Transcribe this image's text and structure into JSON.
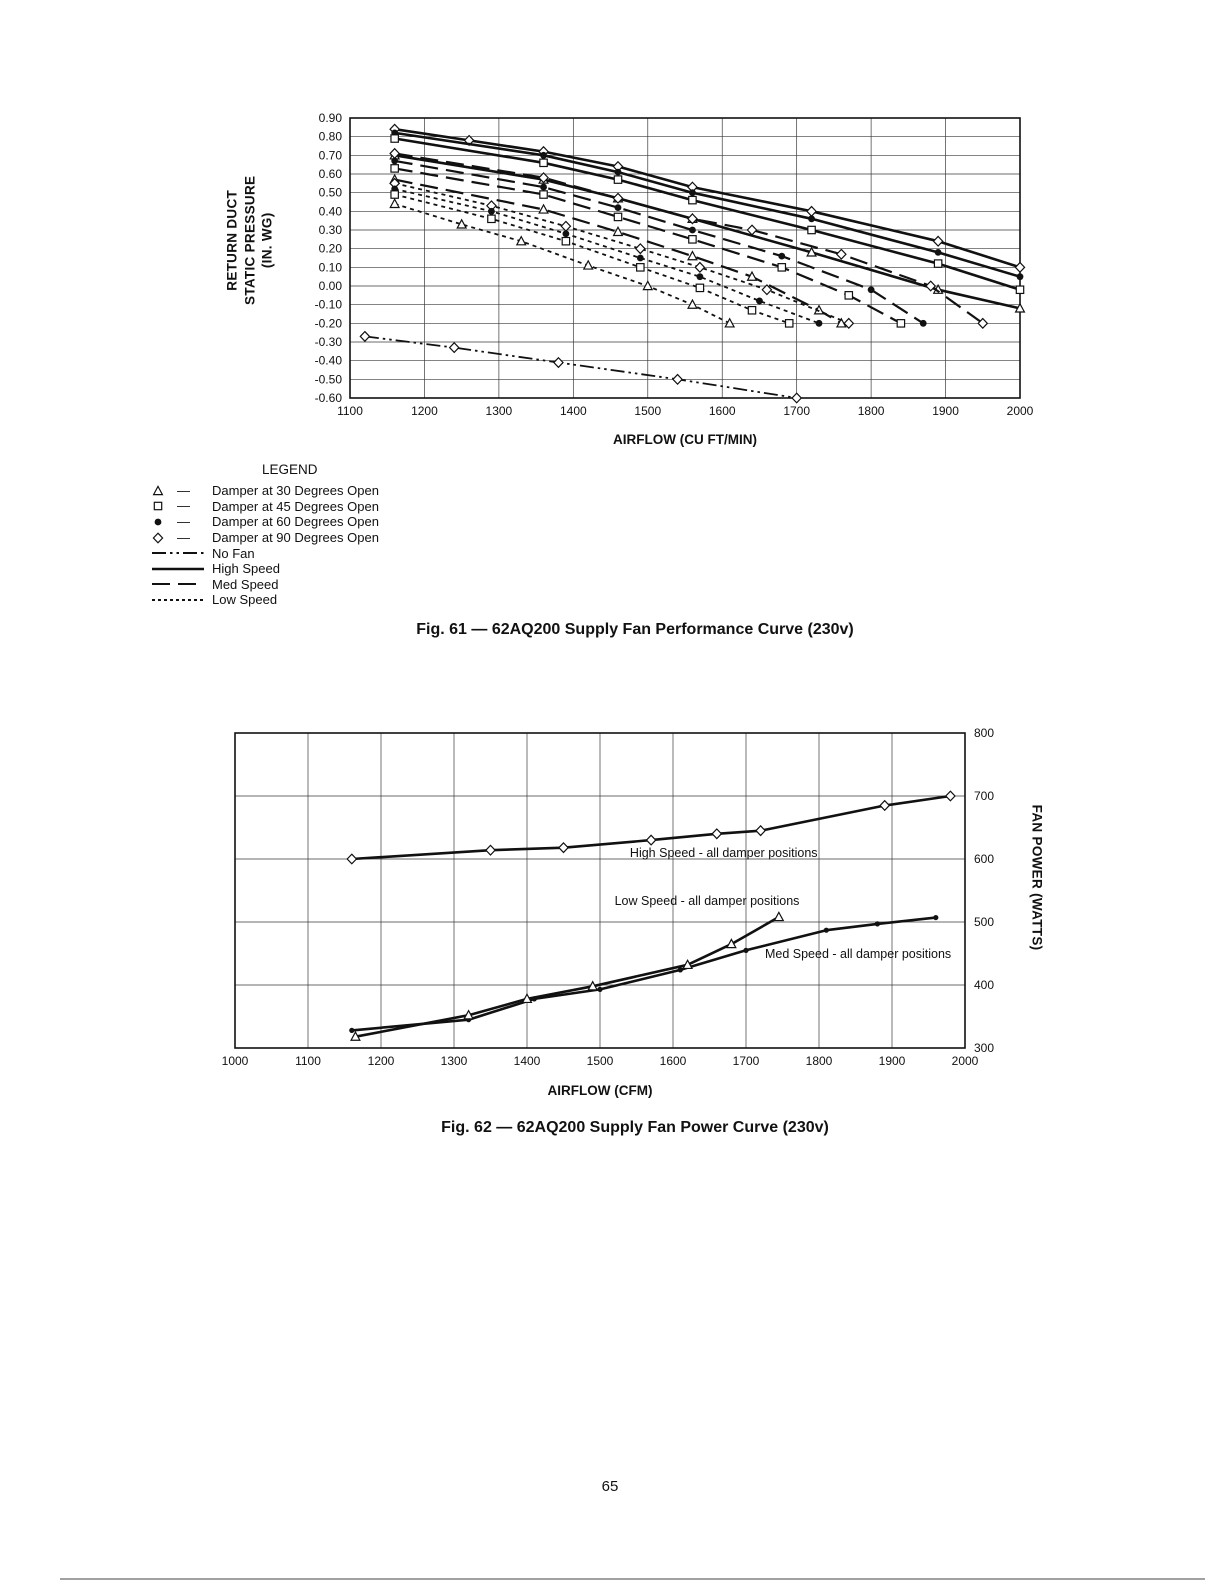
{
  "page": {
    "number": "65"
  },
  "fig61": {
    "caption": "Fig. 61 — 62AQ200 Supply Fan Performance Curve (230v)",
    "xlabel": "AIRFLOW (CU FT/MIN)",
    "ylabel_lines": [
      "RETURN DUCT",
      "STATIC PRESSURE",
      "(IN. WG)"
    ],
    "legend": {
      "title": "LEGEND",
      "items": [
        {
          "marker": "triangle",
          "label": "Damper at 30 Degrees Open"
        },
        {
          "marker": "square",
          "label": "Damper at 45 Degrees Open"
        },
        {
          "marker": "circle-filled",
          "label": "Damper at 60 Degrees Open"
        },
        {
          "marker": "diamond",
          "label": "Damper at 90 Degrees Open"
        },
        {
          "line": "dashdot",
          "label": "No Fan"
        },
        {
          "line": "solid",
          "label": "High Speed"
        },
        {
          "line": "dashed",
          "label": "Med Speed"
        },
        {
          "line": "dotted",
          "label": "Low Speed"
        }
      ]
    }
  },
  "fig62": {
    "caption": "Fig. 62 — 62AQ200 Supply Fan Power Curve (230v)",
    "xlabel": "AIRFLOW (CFM)",
    "ylabel": "FAN POWER (WATTS)"
  },
  "chart_data": [
    {
      "type": "line",
      "title": "Fig. 61 — 62AQ200 Supply Fan Performance Curve (230v)",
      "xlabel": "AIRFLOW (CU FT/MIN)",
      "ylabel": "RETURN DUCT STATIC PRESSURE (IN. WG)",
      "xlim": [
        1100,
        2000
      ],
      "ylim": [
        -0.6,
        0.9
      ],
      "x_tick_step": 100,
      "y_tick_step": 0.1,
      "y_tick_decimals": 2,
      "grid": true,
      "legend_position": "below-left",
      "series": [
        {
          "name": "High Speed - Damper at 90 Degrees Open",
          "line": "solid",
          "marker": "diamond",
          "points": [
            [
              1160,
              0.84
            ],
            [
              1260,
              0.78
            ],
            [
              1360,
              0.72
            ],
            [
              1460,
              0.64
            ],
            [
              1560,
              0.53
            ],
            [
              1720,
              0.4
            ],
            [
              1890,
              0.24
            ],
            [
              2000,
              0.1
            ]
          ]
        },
        {
          "name": "High Speed - Damper at 60 Degrees Open",
          "line": "solid",
          "marker": "circle-filled",
          "points": [
            [
              1160,
              0.82
            ],
            [
              1360,
              0.7
            ],
            [
              1460,
              0.61
            ],
            [
              1560,
              0.5
            ],
            [
              1720,
              0.36
            ],
            [
              1890,
              0.18
            ],
            [
              2000,
              0.05
            ]
          ]
        },
        {
          "name": "High Speed - Damper at 45 Degrees Open",
          "line": "solid",
          "marker": "square",
          "points": [
            [
              1160,
              0.79
            ],
            [
              1360,
              0.66
            ],
            [
              1460,
              0.57
            ],
            [
              1560,
              0.46
            ],
            [
              1720,
              0.3
            ],
            [
              1890,
              0.12
            ],
            [
              2000,
              -0.02
            ]
          ]
        },
        {
          "name": "High Speed - Damper at 30 Degrees Open",
          "line": "solid",
          "marker": "triangle",
          "points": [
            [
              1160,
              0.7
            ],
            [
              1360,
              0.57
            ],
            [
              1460,
              0.47
            ],
            [
              1560,
              0.36
            ],
            [
              1720,
              0.18
            ],
            [
              1890,
              -0.02
            ],
            [
              2000,
              -0.12
            ]
          ]
        },
        {
          "name": "Med Speed - Damper at 90 Degrees Open",
          "line": "dashed",
          "marker": "diamond",
          "points": [
            [
              1160,
              0.71
            ],
            [
              1360,
              0.58
            ],
            [
              1460,
              0.47
            ],
            [
              1560,
              0.36
            ],
            [
              1640,
              0.3
            ],
            [
              1760,
              0.17
            ],
            [
              1880,
              0.0
            ],
            [
              1950,
              -0.2
            ]
          ]
        },
        {
          "name": "Med Speed - Damper at 60 Degrees Open",
          "line": "dashed",
          "marker": "circle-filled",
          "points": [
            [
              1160,
              0.67
            ],
            [
              1360,
              0.53
            ],
            [
              1460,
              0.42
            ],
            [
              1560,
              0.3
            ],
            [
              1680,
              0.16
            ],
            [
              1800,
              -0.02
            ],
            [
              1870,
              -0.2
            ]
          ]
        },
        {
          "name": "Med Speed - Damper at 45 Degrees Open",
          "line": "dashed",
          "marker": "square",
          "points": [
            [
              1160,
              0.63
            ],
            [
              1360,
              0.49
            ],
            [
              1460,
              0.37
            ],
            [
              1560,
              0.25
            ],
            [
              1680,
              0.1
            ],
            [
              1770,
              -0.05
            ],
            [
              1840,
              -0.2
            ]
          ]
        },
        {
          "name": "Med Speed - Damper at 30 Degrees Open",
          "line": "dashed",
          "marker": "triangle",
          "points": [
            [
              1160,
              0.57
            ],
            [
              1360,
              0.41
            ],
            [
              1460,
              0.29
            ],
            [
              1560,
              0.16
            ],
            [
              1640,
              0.05
            ],
            [
              1730,
              -0.13
            ],
            [
              1760,
              -0.2
            ]
          ]
        },
        {
          "name": "Low Speed - Damper at 90 Degrees Open",
          "line": "dotted",
          "marker": "diamond",
          "points": [
            [
              1160,
              0.55
            ],
            [
              1290,
              0.43
            ],
            [
              1390,
              0.32
            ],
            [
              1490,
              0.2
            ],
            [
              1570,
              0.1
            ],
            [
              1660,
              -0.02
            ],
            [
              1770,
              -0.2
            ]
          ]
        },
        {
          "name": "Low Speed - Damper at 60 Degrees Open",
          "line": "dotted",
          "marker": "circle-filled",
          "points": [
            [
              1160,
              0.52
            ],
            [
              1290,
              0.4
            ],
            [
              1390,
              0.28
            ],
            [
              1490,
              0.15
            ],
            [
              1570,
              0.05
            ],
            [
              1650,
              -0.08
            ],
            [
              1730,
              -0.2
            ]
          ]
        },
        {
          "name": "Low Speed - Damper at 45 Degrees Open",
          "line": "dotted",
          "marker": "square",
          "points": [
            [
              1160,
              0.49
            ],
            [
              1290,
              0.36
            ],
            [
              1390,
              0.24
            ],
            [
              1490,
              0.1
            ],
            [
              1570,
              -0.01
            ],
            [
              1640,
              -0.13
            ],
            [
              1690,
              -0.2
            ]
          ]
        },
        {
          "name": "Low Speed - Damper at 30 Degrees Open",
          "line": "dotted",
          "marker": "triangle",
          "points": [
            [
              1160,
              0.44
            ],
            [
              1250,
              0.33
            ],
            [
              1330,
              0.24
            ],
            [
              1420,
              0.11
            ],
            [
              1500,
              0.0
            ],
            [
              1560,
              -0.1
            ],
            [
              1610,
              -0.2
            ]
          ]
        },
        {
          "name": "No Fan",
          "line": "dashdot",
          "marker": "diamond",
          "points": [
            [
              1120,
              -0.27
            ],
            [
              1240,
              -0.33
            ],
            [
              1380,
              -0.41
            ],
            [
              1540,
              -0.5
            ],
            [
              1700,
              -0.6
            ]
          ]
        }
      ]
    },
    {
      "type": "line",
      "title": "Fig. 62 — 62AQ200 Supply Fan Power Curve (230v)",
      "xlabel": "AIRFLOW (CFM)",
      "ylabel": "FAN POWER (WATTS)",
      "xlim": [
        1000,
        2000
      ],
      "ylim": [
        300,
        800
      ],
      "x_tick_step": 100,
      "y_tick_step": 100,
      "y_tick_decimals": 0,
      "y_axis_side": "right",
      "grid": true,
      "series": [
        {
          "name": "High Speed - all damper positions",
          "line": "solid",
          "marker": "diamond",
          "points": [
            [
              1160,
              600
            ],
            [
              1350,
              614
            ],
            [
              1450,
              618
            ],
            [
              1570,
              630
            ],
            [
              1660,
              640
            ],
            [
              1720,
              645
            ],
            [
              1890,
              685
            ],
            [
              1980,
              700
            ]
          ]
        },
        {
          "name": "Med Speed - all damper positions",
          "line": "solid",
          "marker": "dot",
          "points": [
            [
              1160,
              328
            ],
            [
              1320,
              345
            ],
            [
              1410,
              378
            ],
            [
              1500,
              393
            ],
            [
              1610,
              424
            ],
            [
              1700,
              455
            ],
            [
              1810,
              487
            ],
            [
              1880,
              497
            ],
            [
              1960,
              507
            ]
          ]
        },
        {
          "name": "Low Speed - all damper positions",
          "line": "solid",
          "marker": "triangle",
          "points": [
            [
              1165,
              318
            ],
            [
              1320,
              352
            ],
            [
              1400,
              378
            ],
            [
              1490,
              398
            ],
            [
              1620,
              432
            ],
            [
              1680,
              465
            ],
            [
              1745,
              508
            ]
          ]
        }
      ],
      "annotations": [
        {
          "text": "High Speed - all damper positions",
          "x": 1541,
          "y": 603
        },
        {
          "text": "Low Speed - all damper positions",
          "x": 1520,
          "y": 527
        },
        {
          "text": "Med Speed - all damper positions",
          "x": 1726,
          "y": 443
        }
      ]
    }
  ]
}
